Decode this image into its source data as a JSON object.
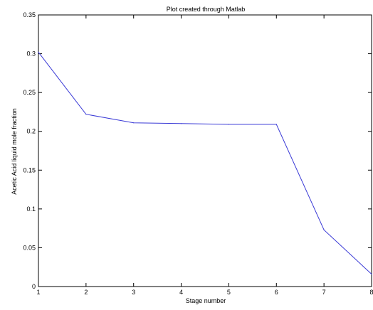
{
  "chart_data": {
    "type": "line",
    "title": "Plot created through Matlab",
    "xlabel": "Stage number",
    "ylabel": "Acetic Acid liquid mole fraction",
    "xlim": [
      1,
      8
    ],
    "ylim": [
      0,
      0.35
    ],
    "x_ticks": [
      "1",
      "2",
      "3",
      "4",
      "5",
      "6",
      "7",
      "8"
    ],
    "y_ticks": [
      "0",
      "0.05",
      "0.1",
      "0.15",
      "0.2",
      "0.25",
      "0.3",
      "0.35"
    ],
    "grid": false,
    "series": [
      {
        "x": [
          1,
          2,
          3,
          4,
          5,
          6,
          7,
          8
        ],
        "values": [
          0.302,
          0.222,
          0.211,
          0.21,
          0.209,
          0.209,
          0.073,
          0.016
        ],
        "color": "#3a3ad6"
      }
    ]
  }
}
